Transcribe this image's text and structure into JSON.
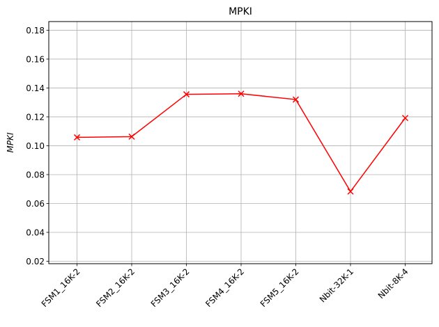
{
  "chart_data": {
    "type": "line",
    "title": "MPKI",
    "xlabel": "",
    "ylabel": "MPKI",
    "categories": [
      "FSM1_16K-2",
      "FSM2_16K-2",
      "FSM3_16K-2",
      "FSM4_16K-2",
      "FSM5_16K-2",
      "Nbit-32K-1",
      "Nbit-8K-4"
    ],
    "series": [
      {
        "values": [
          0.1058,
          0.1063,
          0.1356,
          0.136,
          0.132,
          0.0683,
          0.1192
        ],
        "color": "#ff0000",
        "marker": "x"
      }
    ],
    "ylim": [
      0.0183,
      0.186
    ],
    "yticks": [
      "0.02",
      "0.04",
      "0.06",
      "0.08",
      "0.10",
      "0.12",
      "0.14",
      "0.16",
      "0.18"
    ],
    "ytick_values": [
      0.02,
      0.04,
      0.06,
      0.08,
      0.1,
      0.12,
      0.14,
      0.16,
      0.18
    ],
    "grid": true,
    "xtick_rotation": "45"
  }
}
